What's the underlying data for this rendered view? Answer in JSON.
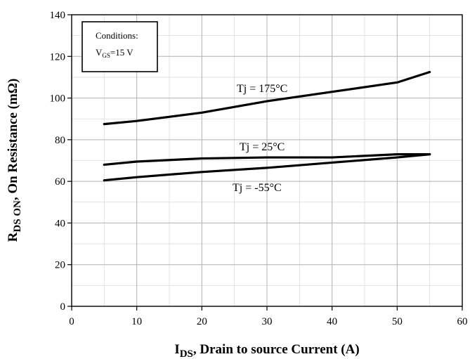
{
  "chart_data": {
    "type": "line",
    "xlabel_main": "I",
    "xlabel_sub": "DS",
    "xlabel_rest": ", Drain to source Current (A)",
    "ylabel_main": "R",
    "ylabel_sub": "DS ON",
    "ylabel_rest": ", On Resistance (mΩ)",
    "xlim": [
      0,
      60
    ],
    "ylim": [
      0,
      140
    ],
    "xticks": [
      0,
      10,
      20,
      30,
      40,
      50,
      60
    ],
    "yticks": [
      0,
      20,
      40,
      60,
      80,
      100,
      120,
      140
    ],
    "x_minor_step": 5,
    "y_minor_step": 10,
    "grid": true,
    "annotation": {
      "title": "Conditions:",
      "line_main": "V",
      "line_sub": "GS",
      "line_rest": "=15 V"
    },
    "series": [
      {
        "name": "Tj = 175°C",
        "x": [
          5,
          10,
          20,
          30,
          40,
          50,
          55
        ],
        "y": [
          87.5,
          89,
          93,
          98.5,
          103,
          107.5,
          112.5
        ]
      },
      {
        "name": "Tj = 25°C",
        "x": [
          5,
          10,
          20,
          30,
          40,
          50,
          55
        ],
        "y": [
          68,
          69.5,
          71,
          71.5,
          71.5,
          73,
          73
        ]
      },
      {
        "name": "Tj = -55°C",
        "x": [
          5,
          10,
          20,
          30,
          40,
          50,
          55
        ],
        "y": [
          60.5,
          62,
          64.5,
          66.5,
          69,
          71.5,
          73
        ]
      }
    ]
  }
}
